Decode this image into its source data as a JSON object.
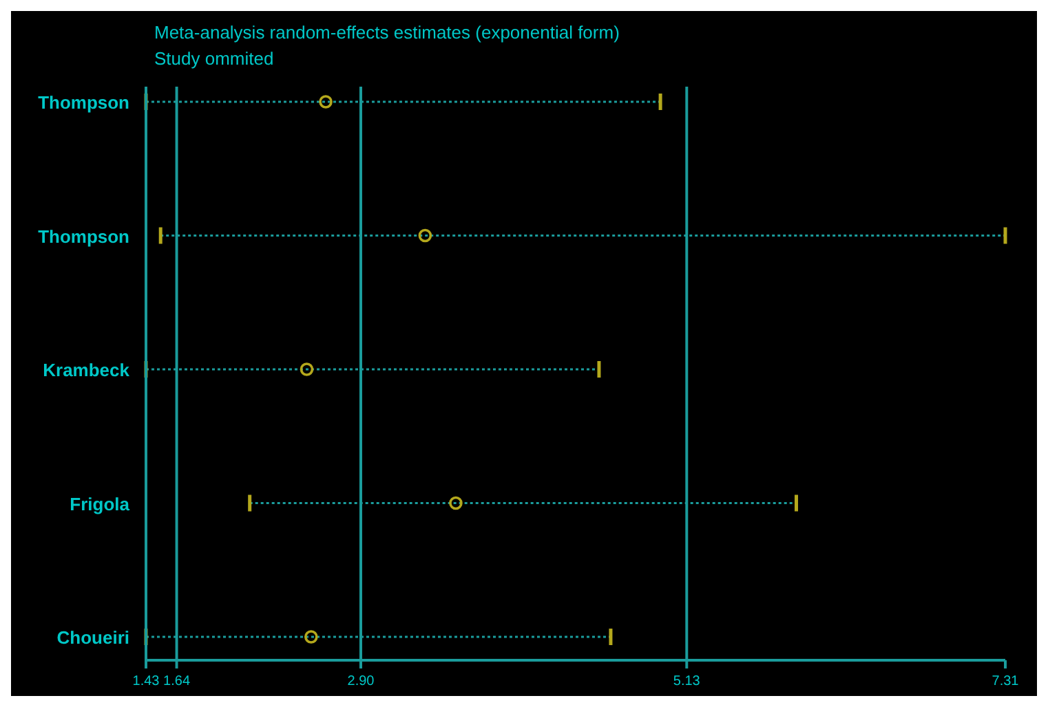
{
  "chart_data": {
    "type": "scatter",
    "title": "Meta-analysis random-effects estimates (exponential form)",
    "subtitle": "Study ommited",
    "orientation": "horizontal",
    "categories": [
      "Thompson",
      "Thompson",
      "Krambeck",
      "Frigola",
      "Choueiri"
    ],
    "values": [
      2.66,
      3.34,
      2.53,
      3.55,
      2.56
    ],
    "errors": [
      [
        1.43,
        4.95
      ],
      [
        1.53,
        7.31
      ],
      [
        1.43,
        4.53
      ],
      [
        2.14,
        5.88
      ],
      [
        1.43,
        4.61
      ]
    ],
    "color": "#b4a81c",
    "marker": "circle",
    "xlim": [
      1.43,
      7.31
    ],
    "xticks": [
      1.43,
      1.64,
      {
        "value": 2.9,
        "label": "2.90"
      },
      5.13,
      7.31
    ],
    "ref_lines": [
      {
        "axis": "x",
        "value": 1.64,
        "color": "#1a9c9c"
      },
      {
        "axis": "x",
        "value": 2.9,
        "color": "#1a9c9c"
      },
      {
        "axis": "x",
        "value": 5.13,
        "color": "#1a9c9c"
      }
    ]
  }
}
